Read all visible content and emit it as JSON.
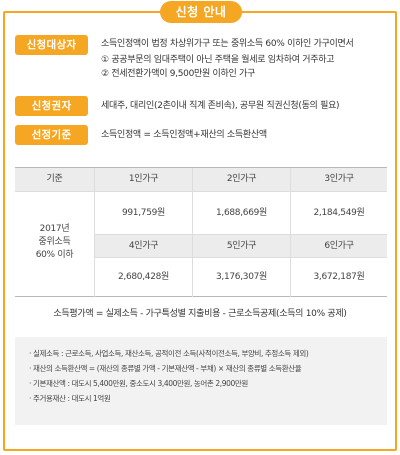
{
  "title": "신청 안내",
  "sections": {
    "applicant": {
      "label": "신청대상자",
      "line1": "소득인정액이 법정 차상위가구 또는 중위소득 60% 이하인 가구이면서",
      "line2": "① 공공부문의 임대주택이 아닌 주택을 월세로 임차하여 거주하고",
      "line3": "② 전세전환가액이 9,500만원 이하인 가구"
    },
    "authority": {
      "label": "신청권자",
      "text": "세대주, 대리인(2촌이내 직계 존비속), 공무원 직권신청(동의 필요)"
    },
    "criteria": {
      "label": "선정기준",
      "text": "소득인정액 = 소득인정액+재산의 소득환산액"
    }
  },
  "table": {
    "col_header": "기준",
    "row_label_1": "2017년",
    "row_label_2": "중위소득",
    "row_label_3": "60% 이하",
    "h1": "1인가구",
    "v1": "991,759원",
    "h2": "2인가구",
    "v2": "1,688,669원",
    "h3": "3인가구",
    "v3": "2,184,549원",
    "h4": "4인가구",
    "v4": "2,680,428원",
    "h5": "5인가구",
    "v5": "3,176,307원",
    "h6": "6인가구",
    "v6": "3,672,187원"
  },
  "formula": "소득평가액 = 실제소득 - 가구특성별 지출비용 - 근로소득공제(소득의 10% 공제)",
  "notes": [
    "· 실제소득 : 근로소득, 사업소득, 재산소득, 공적이전 소득(사적이전소득, 부양비, 추정소득 제외)",
    "· 재산의 소득환산액 = (재산의 종류별 가액 - 기본재산액 - 부채) × 재산의 종류별 소득환산율",
    "· 기본재산액 : 대도시 5,400만원, 중소도시 3,400만원, 농어촌 2,900만원",
    "· 주거용재산 : 대도시 1억원"
  ]
}
